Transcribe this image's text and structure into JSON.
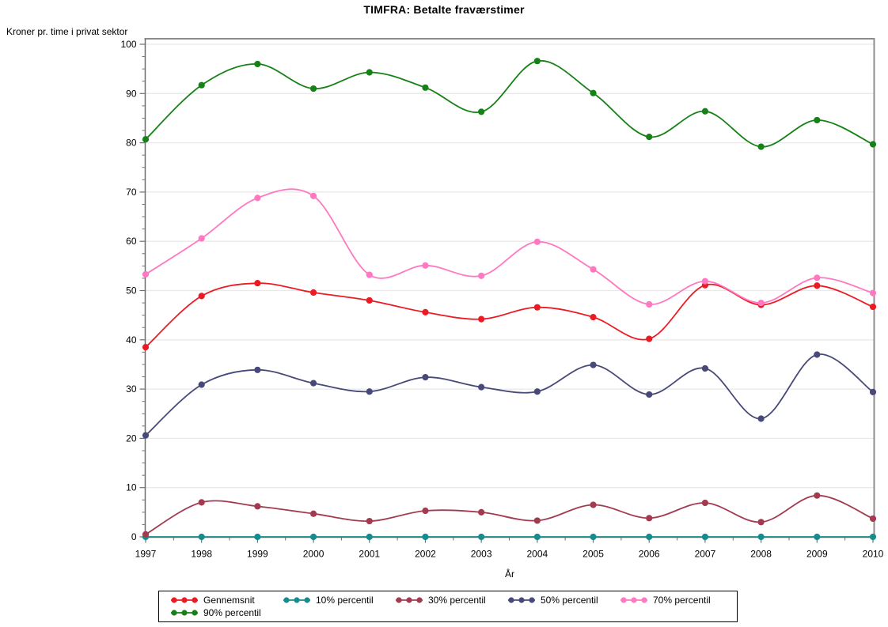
{
  "title": "TIMFRA: Betalte fraværstimer",
  "chart_data": {
    "type": "line",
    "title": "TIMFRA: Betalte fraværstimer",
    "xlabel": "År",
    "ylabel": "Kroner pr. time i privat sektor",
    "x": [
      1997,
      1998,
      1999,
      2000,
      2001,
      2002,
      2003,
      2004,
      2005,
      2006,
      2007,
      2008,
      2009,
      2010
    ],
    "ylim": [
      0,
      100
    ],
    "y_ticks": [
      0,
      10,
      20,
      30,
      40,
      50,
      60,
      70,
      80,
      90,
      100
    ],
    "y_minor_step": 2.5,
    "grid": "horizontal",
    "legend_position": "bottom",
    "series": [
      {
        "name": "Gennemsnit",
        "color": "#EC1B23",
        "values": [
          38.5,
          48.9,
          51.5,
          49.6,
          48.0,
          45.6,
          44.2,
          46.6,
          44.6,
          40.2,
          51.1,
          47.1,
          51.0,
          46.7
        ]
      },
      {
        "name": "10% percentil",
        "color": "#168C8C",
        "values": [
          0,
          0,
          0,
          0,
          0,
          0,
          0,
          0,
          0,
          0,
          0,
          0,
          0,
          0
        ]
      },
      {
        "name": "30% percentil",
        "color": "#A23B50",
        "values": [
          0.5,
          7.0,
          6.2,
          4.7,
          3.2,
          5.3,
          5.0,
          3.3,
          6.5,
          3.8,
          6.9,
          3.0,
          8.4,
          3.7
        ]
      },
      {
        "name": "50% percentil",
        "color": "#474A78",
        "values": [
          20.6,
          30.9,
          33.9,
          31.2,
          29.5,
          32.4,
          30.4,
          29.5,
          34.9,
          28.9,
          34.2,
          24.0,
          37.0,
          29.4
        ]
      },
      {
        "name": "70% percentil",
        "color": "#FF78C1",
        "values": [
          53.3,
          60.6,
          68.8,
          69.2,
          53.2,
          55.1,
          53.0,
          59.9,
          54.3,
          47.2,
          51.9,
          47.5,
          52.6,
          49.5
        ]
      },
      {
        "name": "90% percentil",
        "color": "#168116",
        "values": [
          80.7,
          91.7,
          96.0,
          91.0,
          94.3,
          91.2,
          86.3,
          96.6,
          90.1,
          81.2,
          86.4,
          79.2,
          84.6,
          79.7
        ]
      }
    ]
  },
  "frame": {
    "grid_color": "#E9E9E9",
    "border_color": "#8C8C8C",
    "axis_color": "#6E6E6E"
  }
}
